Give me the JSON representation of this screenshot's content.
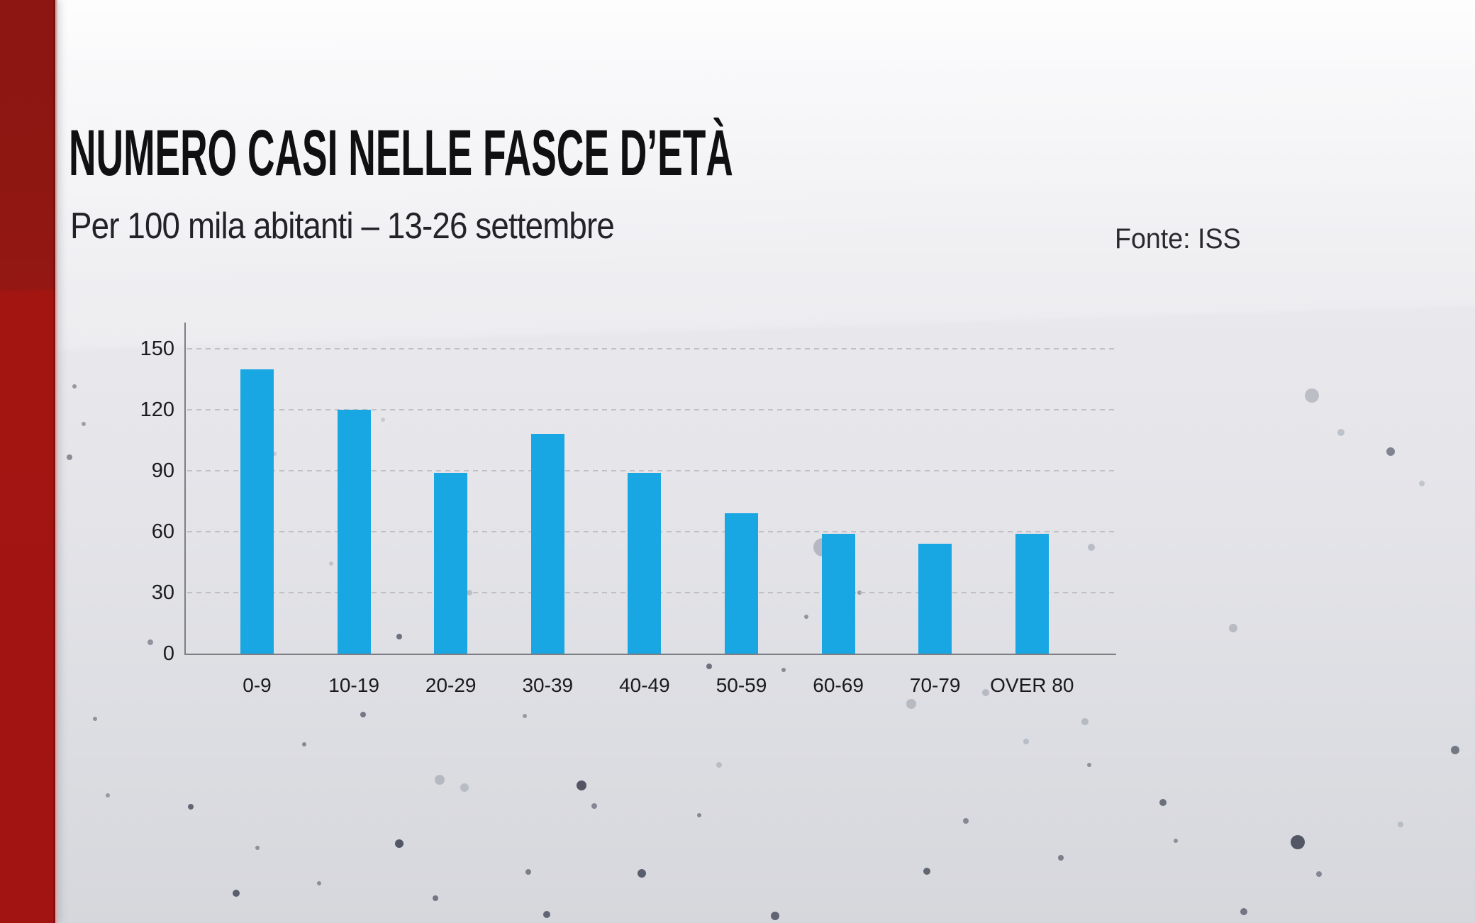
{
  "header": {
    "title": "NUMERO CASI NELLE FASCE D’ETÀ",
    "subtitle": "Per 100 mila abitanti – 13-26 settembre",
    "source": "Fonte: ISS"
  },
  "colors": {
    "bar": "#18a7e3",
    "accent_band": "#a21411",
    "grid": "#b9babf",
    "axis": "#7d7e83",
    "text": "#1b1b1e"
  },
  "chart_data": {
    "type": "bar",
    "title": "NUMERO CASI NELLE FASCE D’ETÀ",
    "subtitle": "Per 100 mila abitanti – 13-26 settembre",
    "source": "Fonte: ISS",
    "categories": [
      "0-9",
      "10-19",
      "20-29",
      "30-39",
      "40-49",
      "50-59",
      "60-69",
      "70-79",
      "OVER 80"
    ],
    "values": [
      140,
      120,
      89,
      108,
      89,
      69,
      59,
      54,
      59
    ],
    "xlabel": "",
    "ylabel": "",
    "ylim": [
      0,
      150
    ],
    "yticks": [
      0,
      30,
      60,
      90,
      120,
      150
    ],
    "grid": "horizontal-dashed",
    "legend": "none",
    "bar_color": "#18a7e3"
  }
}
